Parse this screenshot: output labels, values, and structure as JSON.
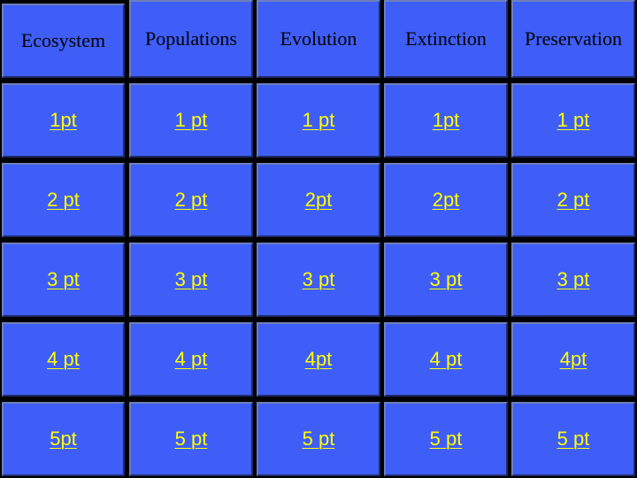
{
  "colors": {
    "cell_fill": "#3f5ef8",
    "grid_background": "#000000",
    "header_text": "#000000",
    "value_text": "#ffff00"
  },
  "headers": [
    "Ecosystem",
    "Populations",
    "Evolution",
    "Extinction",
    "Preservation"
  ],
  "rows": [
    [
      "1pt",
      "1 pt",
      "1 pt",
      "1pt",
      "1 pt"
    ],
    [
      "2 pt",
      "2 pt",
      "2pt",
      "2pt",
      "2 pt"
    ],
    [
      "3 pt",
      "3 pt",
      "3 pt",
      "3 pt",
      "3 pt"
    ],
    [
      "4 pt",
      "4 pt",
      "4pt",
      "4 pt",
      "4pt"
    ],
    [
      "5pt",
      "5 pt",
      "5 pt",
      "5 pt",
      "5 pt"
    ]
  ]
}
